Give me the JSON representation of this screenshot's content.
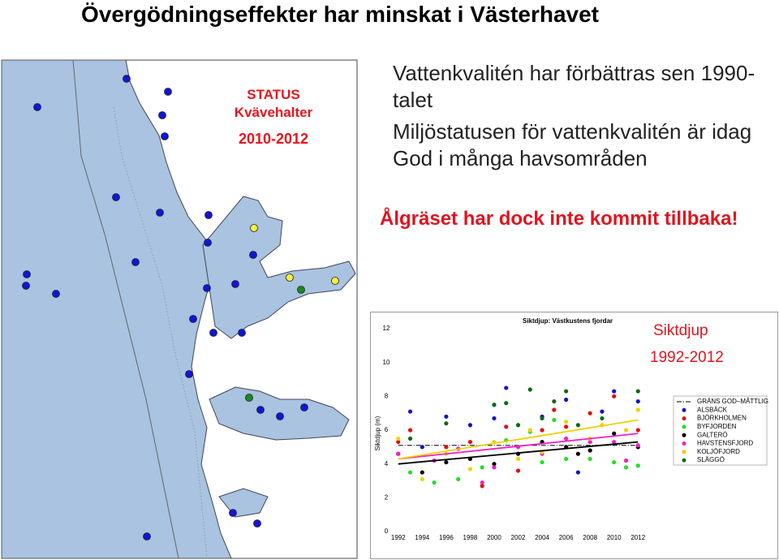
{
  "slide": {
    "title": "Övergödningseffekter har minskat i Västerhavet",
    "status": {
      "label": "STATUS",
      "sublabel": "Kvävehalter",
      "period": "2010-2012"
    },
    "bullets": [
      "Vattenkvalitén har förbättras sen 1990-talet",
      "Miljöstatusen för vattenkvalitén är idag God i många havsområden"
    ],
    "highlight": "Ålgräset har dock inte kommit tillbaka!"
  },
  "chart_data": {
    "type": "scatter",
    "title": "Siktdjup: Västkustens fjordar",
    "y_label": "Siktdjup (m)",
    "annotations": [
      "Siktdjup",
      "1992-2012"
    ],
    "x": [
      1992,
      1993,
      1994,
      1995,
      1996,
      1997,
      1998,
      1999,
      2000,
      2001,
      2002,
      2003,
      2004,
      2005,
      2006,
      2007,
      2008,
      2009,
      2010,
      2011,
      2012
    ],
    "xlim": [
      1991,
      2013.2
    ],
    "xticks": [
      1992,
      1994,
      1996,
      1998,
      2000,
      2002,
      2004,
      2006,
      2008,
      2010,
      2012
    ],
    "ylim": [
      0,
      12
    ],
    "yticks": [
      0,
      2,
      4,
      6,
      8,
      10,
      12
    ],
    "threshold": {
      "name": "GRÄNS GOD–MÅTTLIG",
      "value": 5.1,
      "color": "#000000"
    },
    "series": [
      {
        "name": "ALSBÄCK",
        "color": "#1414c8",
        "values": [
          null,
          7.1,
          5.0,
          null,
          6.8,
          null,
          6.3,
          null,
          6.7,
          8.5,
          null,
          null,
          6.8,
          null,
          7.8,
          3.5,
          null,
          7.1,
          8.3,
          null,
          7.7
        ]
      },
      {
        "name": "BJÖRKHOLMEN",
        "color": "#e01010",
        "values": [
          5.3,
          6.0,
          null,
          null,
          5.0,
          null,
          5.3,
          2.7,
          null,
          6.2,
          3.6,
          null,
          6.0,
          7.2,
          6.2,
          null,
          7.0,
          null,
          8.0,
          null,
          6.0
        ]
      },
      {
        "name": "BYFJORDEN",
        "color": "#22e022",
        "values": [
          null,
          3.5,
          null,
          2.9,
          null,
          3.1,
          null,
          3.8,
          null,
          5.4,
          null,
          5.9,
          4.1,
          6.6,
          4.3,
          null,
          4.3,
          null,
          4.1,
          3.8,
          3.9
        ]
      },
      {
        "name": "GALTERÖ",
        "color": "#000000",
        "values": [
          4.6,
          null,
          3.5,
          null,
          4.1,
          null,
          4.3,
          null,
          4.0,
          null,
          4.6,
          null,
          5.3,
          null,
          5.0,
          4.6,
          4.8,
          null,
          5.8,
          null,
          5.0
        ],
        "trend": [
          4.0,
          5.3
        ]
      },
      {
        "name": "HAVSTENSFJORD",
        "color": "#f020c8",
        "values": [
          4.6,
          null,
          null,
          4.2,
          null,
          4.9,
          null,
          2.9,
          3.8,
          null,
          5.0,
          null,
          4.6,
          null,
          5.5,
          null,
          5.3,
          null,
          5.3,
          4.2,
          5.1
        ],
        "trend": [
          4.3,
          5.8
        ]
      },
      {
        "name": "KOLJÖFJORD",
        "color": "#f0d000",
        "values": [
          5.5,
          null,
          3.1,
          null,
          4.6,
          null,
          3.7,
          null,
          5.3,
          null,
          4.3,
          6.0,
          4.7,
          null,
          6.5,
          null,
          5.5,
          6.3,
          null,
          6.0,
          7.2
        ],
        "trend": [
          4.3,
          6.6
        ]
      },
      {
        "name": "SLÄGGÖ",
        "color": "#0a6a14",
        "values": [
          null,
          5.5,
          null,
          null,
          6.4,
          null,
          null,
          null,
          7.5,
          7.6,
          6.3,
          8.4,
          6.7,
          7.7,
          8.3,
          6.3,
          null,
          6.7,
          null,
          null,
          8.3
        ]
      }
    ]
  }
}
